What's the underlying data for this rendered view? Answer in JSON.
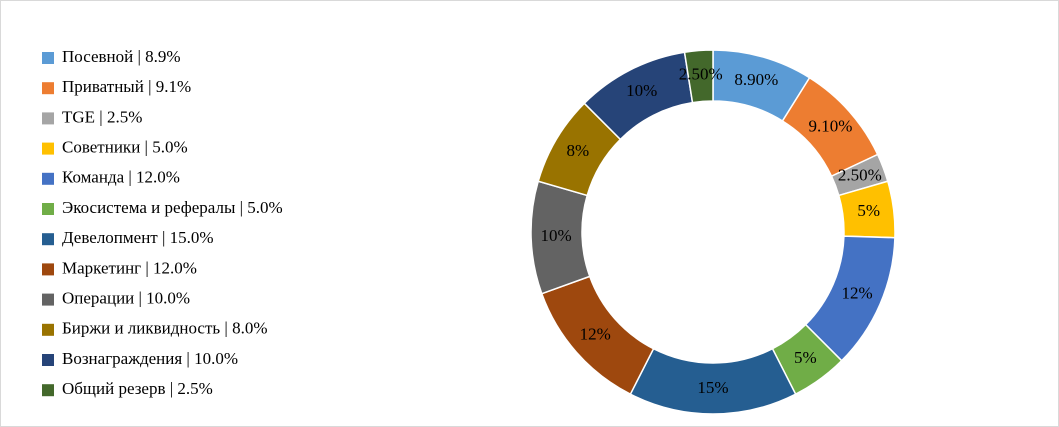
{
  "chart_data": {
    "type": "donut",
    "categories": [
      "Посевной | 8.9%",
      "Приватный | 9.1%",
      "TGE | 2.5%",
      "Советники | 5.0%",
      "Команда | 12.0%",
      "Экосистема и рефералы | 5.0%",
      "Девелопмент | 15.0%",
      "Маркетинг | 12.0%",
      "Операции | 10.0%",
      "Биржи и ликвидность | 8.0%",
      "Вознаграждения | 10.0%",
      "Общий резерв | 2.5%"
    ],
    "values": [
      8.9,
      9.1,
      2.5,
      5,
      12,
      5,
      15,
      12,
      10,
      8,
      10,
      2.5
    ],
    "value_labels": [
      "8.90%",
      "9.10%",
      "2.50%",
      "5%",
      "12%",
      "5%",
      "15%",
      "12%",
      "10%",
      "8%",
      "10%",
      "2.50%"
    ],
    "colors": [
      "#5b9bd5",
      "#ed7d31",
      "#a5a5a5",
      "#ffc000",
      "#4472c4",
      "#70ad47",
      "#255e91",
      "#9e480e",
      "#636363",
      "#997300",
      "#264478",
      "#43682b"
    ],
    "legend": "left"
  }
}
